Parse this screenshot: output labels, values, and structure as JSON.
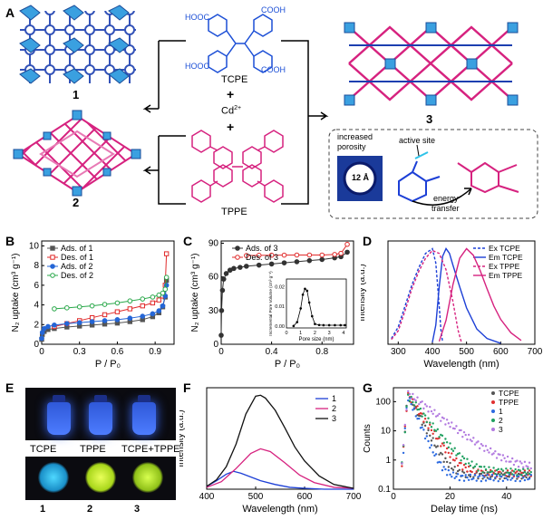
{
  "panels": {
    "A": "A",
    "B": "B",
    "C": "C",
    "D": "D",
    "E": "E",
    "F": "F",
    "G": "G"
  },
  "panel_a": {
    "structure1_label": "1",
    "structure2_label": "2",
    "structure3_label": "3",
    "tcpe_name": "TCPE",
    "tppe_name": "TPPE",
    "plus": "+",
    "metal": "Cd",
    "metal_charge": "2+",
    "cooh": "COOH",
    "hooc": "HOOC",
    "inset_increased": "increased",
    "inset_porosity": "porosity",
    "inset_pore": "12 Å",
    "inset_active": "active site",
    "inset_energy": "energy",
    "inset_transfer": "transfer"
  },
  "panel_e": {
    "top_labels": [
      "TCPE",
      "TPPE",
      "TCPE+TPPE"
    ],
    "bottom_labels": [
      "1",
      "2",
      "3"
    ]
  },
  "chart_data": [
    {
      "id": "B",
      "type": "line",
      "xlabel": "P / P₀",
      "ylabel": "N₂ uptake (cm³ g⁻¹)",
      "xlim": [
        0,
        1.05
      ],
      "ylim": [
        0,
        10.5
      ],
      "xticks": [
        0,
        0.3,
        0.6,
        0.9
      ],
      "xtick_labels": [
        "0",
        "0.3",
        "0.6",
        "0.9"
      ],
      "yticks": [
        0,
        2,
        4,
        6,
        8,
        10
      ],
      "ytick_labels": [
        "0",
        "2",
        "4",
        "6",
        "8",
        "10"
      ],
      "legend": "top-left",
      "series": [
        {
          "name": "Ads. of 1",
          "color": "#555555",
          "marker": "square-filled",
          "x": [
            0,
            0.005,
            0.02,
            0.05,
            0.1,
            0.2,
            0.3,
            0.4,
            0.5,
            0.6,
            0.7,
            0.8,
            0.88,
            0.93,
            0.96,
            0.98,
            0.99
          ],
          "y": [
            0.5,
            1.0,
            1.3,
            1.5,
            1.6,
            1.75,
            1.85,
            1.95,
            2.05,
            2.15,
            2.3,
            2.5,
            2.8,
            3.2,
            3.8,
            4.8,
            6.5
          ]
        },
        {
          "name": "Des. of 1",
          "color": "#e02a2a",
          "marker": "square-open",
          "x": [
            0.99,
            0.98,
            0.96,
            0.93,
            0.88,
            0.8,
            0.7,
            0.6,
            0.5,
            0.4,
            0.3,
            0.2,
            0.1
          ],
          "y": [
            9.2,
            6.0,
            4.9,
            4.5,
            4.2,
            3.9,
            3.6,
            3.3,
            3.0,
            2.7,
            2.4,
            2.1,
            1.8
          ]
        },
        {
          "name": "Ads. of 2",
          "color": "#2566d6",
          "marker": "circle-filled",
          "x": [
            0,
            0.005,
            0.02,
            0.05,
            0.1,
            0.2,
            0.3,
            0.4,
            0.5,
            0.6,
            0.7,
            0.8,
            0.88,
            0.93,
            0.96,
            0.98,
            0.99
          ],
          "y": [
            0.6,
            1.2,
            1.6,
            1.8,
            1.95,
            2.1,
            2.2,
            2.3,
            2.4,
            2.5,
            2.65,
            2.85,
            3.1,
            3.4,
            3.9,
            4.9,
            6.0
          ]
        },
        {
          "name": "Des. of 2",
          "color": "#2aa84a",
          "marker": "circle-open",
          "x": [
            0.99,
            0.98,
            0.96,
            0.93,
            0.88,
            0.8,
            0.7,
            0.6,
            0.5,
            0.4,
            0.3,
            0.2,
            0.1
          ],
          "y": [
            6.8,
            5.6,
            5.2,
            5.0,
            4.8,
            4.6,
            4.4,
            4.2,
            4.05,
            3.9,
            3.8,
            3.7,
            3.6
          ]
        }
      ]
    },
    {
      "id": "C",
      "type": "line",
      "xlabel": "P / P₀",
      "ylabel": "N₂ uptake (cm³ g⁻¹)",
      "xlim": [
        0,
        1.05
      ],
      "ylim": [
        0,
        92
      ],
      "xticks": [
        0,
        0.4,
        0.8
      ],
      "xtick_labels": [
        "0",
        "0.4",
        "0.8"
      ],
      "yticks": [
        0,
        30,
        60,
        90
      ],
      "ytick_labels": [
        "0",
        "30",
        "60",
        "90"
      ],
      "legend": "top-left",
      "series": [
        {
          "name": "Ads. of 3",
          "color": "#333333",
          "marker": "circle-filled",
          "x": [
            0,
            0.003,
            0.01,
            0.02,
            0.04,
            0.07,
            0.1,
            0.15,
            0.2,
            0.3,
            0.4,
            0.5,
            0.6,
            0.7,
            0.8,
            0.9,
            0.95,
            1.0
          ],
          "y": [
            8,
            30,
            48,
            58,
            63,
            66,
            67.5,
            68.5,
            69.5,
            70.5,
            71.5,
            72.5,
            73.5,
            74.5,
            75.5,
            77,
            78,
            82
          ]
        },
        {
          "name": "Des. of 3",
          "color": "#e02a2a",
          "marker": "circle-open",
          "x": [
            1.0,
            0.95,
            0.9,
            0.8,
            0.7,
            0.6,
            0.5,
            0.4,
            0.3,
            0.2
          ],
          "y": [
            89,
            81,
            80,
            79.5,
            79.5,
            79.5,
            79.4,
            79.3,
            79.2,
            79.0
          ]
        }
      ],
      "inset": {
        "type": "line",
        "xlabel": "Pore size (nm)",
        "ylabel": "Incremental Pore Volume (cm³ g⁻¹)",
        "xlim": [
          0,
          4.2
        ],
        "ylim": [
          -0.001,
          0.024
        ],
        "xticks": [
          0,
          1,
          2,
          3,
          4
        ],
        "xtick_labels": [
          "0",
          "1",
          "2",
          "3",
          "4"
        ],
        "yticks": [
          0,
          0.01,
          0.02
        ],
        "ytick_labels": [
          "0.00",
          "0.01",
          "0.02"
        ],
        "x": [
          0.5,
          0.75,
          1.0,
          1.15,
          1.3,
          1.45,
          1.6,
          1.8,
          2.0,
          2.3,
          2.6,
          3.0,
          3.4,
          3.8,
          4.1
        ],
        "y": [
          0.0,
          0.002,
          0.009,
          0.016,
          0.019,
          0.018,
          0.012,
          0.005,
          0.001,
          0.0005,
          0.0004,
          0.0004,
          0.0004,
          0.0004,
          0.0004
        ]
      }
    },
    {
      "id": "D",
      "type": "line",
      "xlabel": "Wavelength (nm)",
      "ylabel": "Intensity (a.u.)",
      "xlim": [
        270,
        700
      ],
      "ylim": [
        0,
        1.08
      ],
      "xticks": [
        300,
        400,
        500,
        600,
        700
      ],
      "xtick_labels": [
        "300",
        "400",
        "500",
        "600",
        "700"
      ],
      "legend": "top-right",
      "series": [
        {
          "name": "Ex TCPE",
          "color": "#1c3fd6",
          "style": "dashed",
          "x": [
            280,
            300,
            320,
            340,
            360,
            380,
            400,
            410,
            420,
            425,
            430
          ],
          "y": [
            0.06,
            0.18,
            0.4,
            0.62,
            0.8,
            0.95,
            1.0,
            0.85,
            0.4,
            0.15,
            0.02
          ]
        },
        {
          "name": "Em TCPE",
          "color": "#1c3fd6",
          "style": "solid",
          "x": [
            400,
            410,
            420,
            430,
            440,
            450,
            460,
            480,
            500,
            530,
            560,
            600
          ],
          "y": [
            0.02,
            0.2,
            0.6,
            0.92,
            1.0,
            0.95,
            0.83,
            0.6,
            0.38,
            0.16,
            0.06,
            0.01
          ]
        },
        {
          "name": "Ex TPPE",
          "color": "#d6227f",
          "style": "dashed",
          "x": [
            280,
            300,
            320,
            340,
            360,
            380,
            400,
            420,
            440,
            460,
            475,
            485
          ],
          "y": [
            0.05,
            0.14,
            0.35,
            0.58,
            0.76,
            0.9,
            0.98,
            0.95,
            0.78,
            0.45,
            0.15,
            0.02
          ]
        },
        {
          "name": "Em TPPE",
          "color": "#d6227f",
          "style": "solid",
          "x": [
            420,
            440,
            460,
            480,
            500,
            520,
            540,
            560,
            580,
            600,
            630,
            660
          ],
          "y": [
            0.03,
            0.25,
            0.62,
            0.9,
            1.0,
            0.93,
            0.77,
            0.58,
            0.4,
            0.26,
            0.12,
            0.04
          ]
        }
      ]
    },
    {
      "id": "F",
      "type": "line",
      "xlabel": "Wavelength (nm)",
      "ylabel": "Intensity (a.u.)",
      "xlim": [
        400,
        700
      ],
      "ylim": [
        0,
        1.08
      ],
      "xticks": [
        400,
        500,
        600,
        700
      ],
      "xtick_labels": [
        "400",
        "500",
        "600",
        "700"
      ],
      "legend": "top-right",
      "series": [
        {
          "name": "1",
          "color": "#1c3fd6",
          "x": [
            400,
            420,
            440,
            455,
            470,
            490,
            510,
            540,
            570,
            600,
            640,
            700
          ],
          "y": [
            0.03,
            0.09,
            0.16,
            0.19,
            0.17,
            0.13,
            0.09,
            0.05,
            0.02,
            0.01,
            0.0,
            0.0
          ]
        },
        {
          "name": "2",
          "color": "#d6227f",
          "x": [
            400,
            430,
            460,
            490,
            510,
            530,
            560,
            590,
            620,
            660,
            700
          ],
          "y": [
            0.02,
            0.08,
            0.22,
            0.38,
            0.43,
            0.4,
            0.28,
            0.15,
            0.07,
            0.02,
            0.01
          ]
        },
        {
          "name": "3",
          "color": "#111111",
          "x": [
            400,
            420,
            440,
            460,
            480,
            500,
            510,
            520,
            540,
            560,
            580,
            600,
            630,
            660,
            700
          ],
          "y": [
            0.03,
            0.1,
            0.24,
            0.48,
            0.8,
            0.99,
            1.0,
            0.97,
            0.84,
            0.65,
            0.45,
            0.3,
            0.14,
            0.05,
            0.01
          ]
        }
      ]
    },
    {
      "id": "G",
      "type": "scatter",
      "xlabel": "Delay time (ns)",
      "ylabel": "Counts",
      "xlim": [
        0,
        50
      ],
      "ylim": [
        0.1,
        300
      ],
      "yscale": "log",
      "xticks": [
        0,
        20,
        40
      ],
      "xtick_labels": [
        "0",
        "20",
        "40"
      ],
      "yticks": [
        0.1,
        1,
        10,
        100
      ],
      "ytick_labels": [
        "0.1",
        "1",
        "10",
        "100"
      ],
      "legend": "top-right",
      "series": [
        {
          "name": "TCPE",
          "color": "#555555",
          "t0": 5,
          "peak": 180,
          "tau": 2.4,
          "base": 0.3
        },
        {
          "name": "TPPE",
          "color": "#e03030",
          "t0": 5,
          "peak": 180,
          "tau": 3.0,
          "base": 0.35
        },
        {
          "name": "1",
          "color": "#2c6ae0",
          "t0": 5,
          "peak": 160,
          "tau": 2.0,
          "base": 0.25
        },
        {
          "name": "2",
          "color": "#20a060",
          "t0": 5,
          "peak": 170,
          "tau": 3.6,
          "base": 0.4
        },
        {
          "name": "3",
          "color": "#b27ae0",
          "t0": 5,
          "peak": 200,
          "tau": 6.0,
          "base": 0.5
        }
      ]
    }
  ]
}
